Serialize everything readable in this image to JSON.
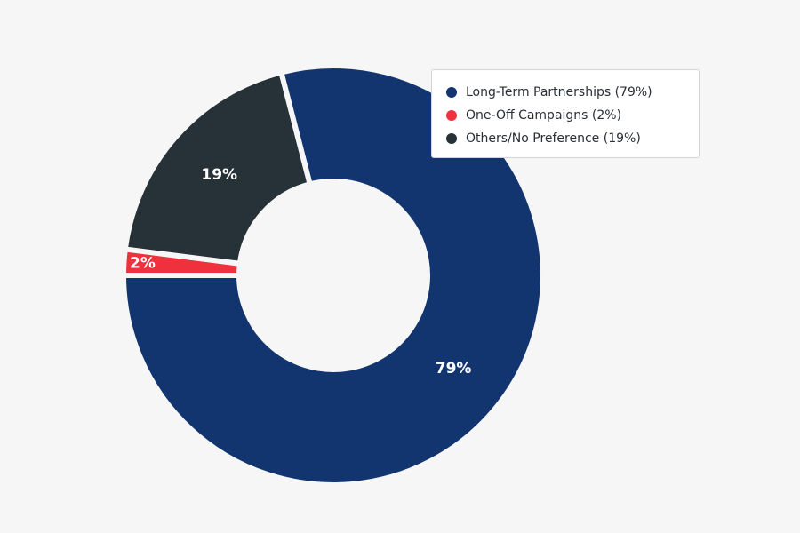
{
  "chart_data": {
    "type": "pie",
    "variant": "donut",
    "title": "",
    "slices": [
      {
        "name": "Long-Term Partnerships",
        "value": 79,
        "label": "79%",
        "legend": "Long-Term Partnerships (79%)",
        "color": "#12356f"
      },
      {
        "name": "One-Off Campaigns",
        "value": 2,
        "label": "2%",
        "legend": "One-Off Campaigns (2%)",
        "color": "#ee313c"
      },
      {
        "name": "Others/No Preference",
        "value": 19,
        "label": "19%",
        "legend": "Others/No Preference (19%)",
        "color": "#263238"
      }
    ],
    "legend_position": "top-right",
    "background_color": "#f6f6f6"
  }
}
